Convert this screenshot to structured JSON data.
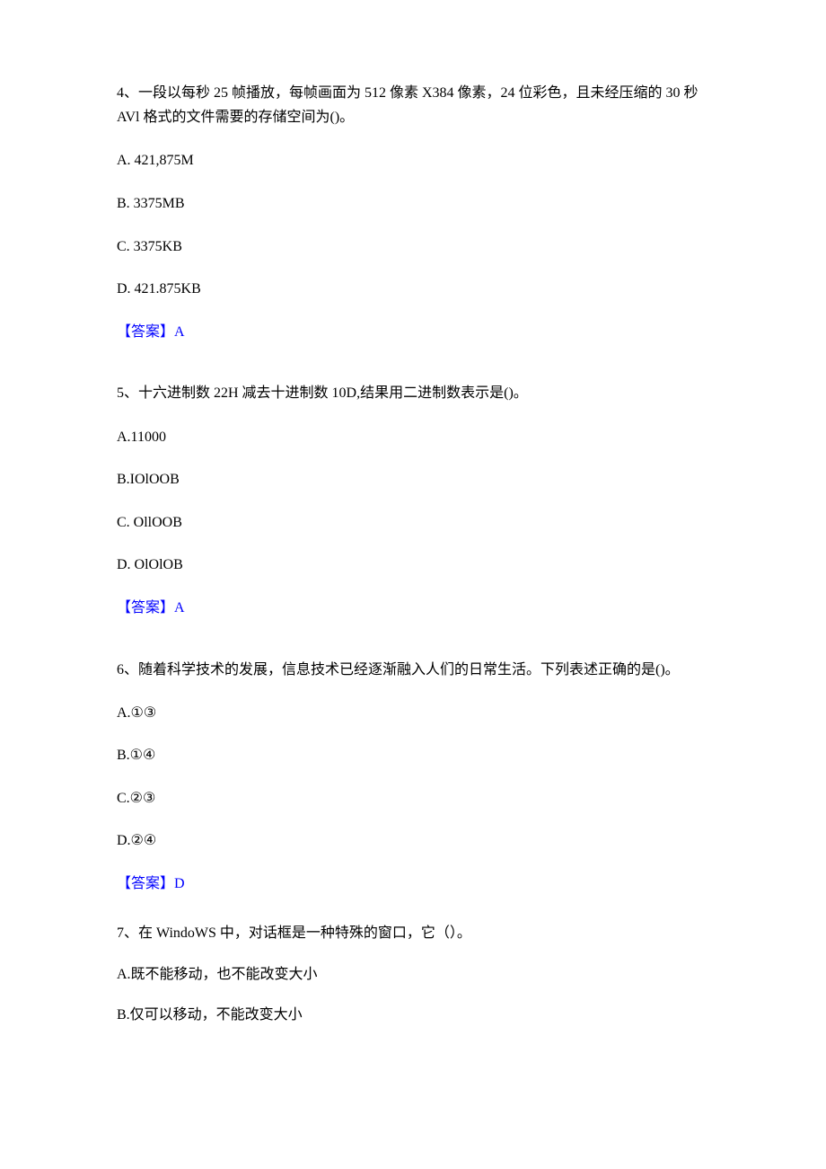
{
  "q4": {
    "text": "4、一段以每秒 25 帧播放，每帧画面为 512 像素 X384 像素，24 位彩色，且未经压缩的 30 秒 AVl 格式的文件需要的存储空间为()。",
    "options": {
      "a": "A. 421,875M",
      "b": "B. 3375MB",
      "c": "C. 3375KB",
      "d": "D. 421.875KB"
    },
    "answer": "【答案】A"
  },
  "q5": {
    "text": "5、十六进制数 22H 减去十进制数 10D,结果用二进制数表示是()。",
    "options": {
      "a": "A.11000",
      "b": "B.IOlOOB",
      "c": "C. OllOOB",
      "d": "D. OlOlOB"
    },
    "answer": "【答案】A"
  },
  "q6": {
    "text": "6、随着科学技术的发展，信息技术已经逐渐融入人们的日常生活。下列表述正确的是()。",
    "options": {
      "a": "A.①③",
      "b": "B.①④",
      "c": "C.②③",
      "d": "D.②④"
    },
    "answer": "【答案】D"
  },
  "q7": {
    "text": "7、在 WindoWS 中，对话框是一种特殊的窗口，它（）。",
    "options": {
      "a": "A.既不能移动，也不能改变大小",
      "b": "B.仅可以移动，不能改变大小"
    }
  }
}
